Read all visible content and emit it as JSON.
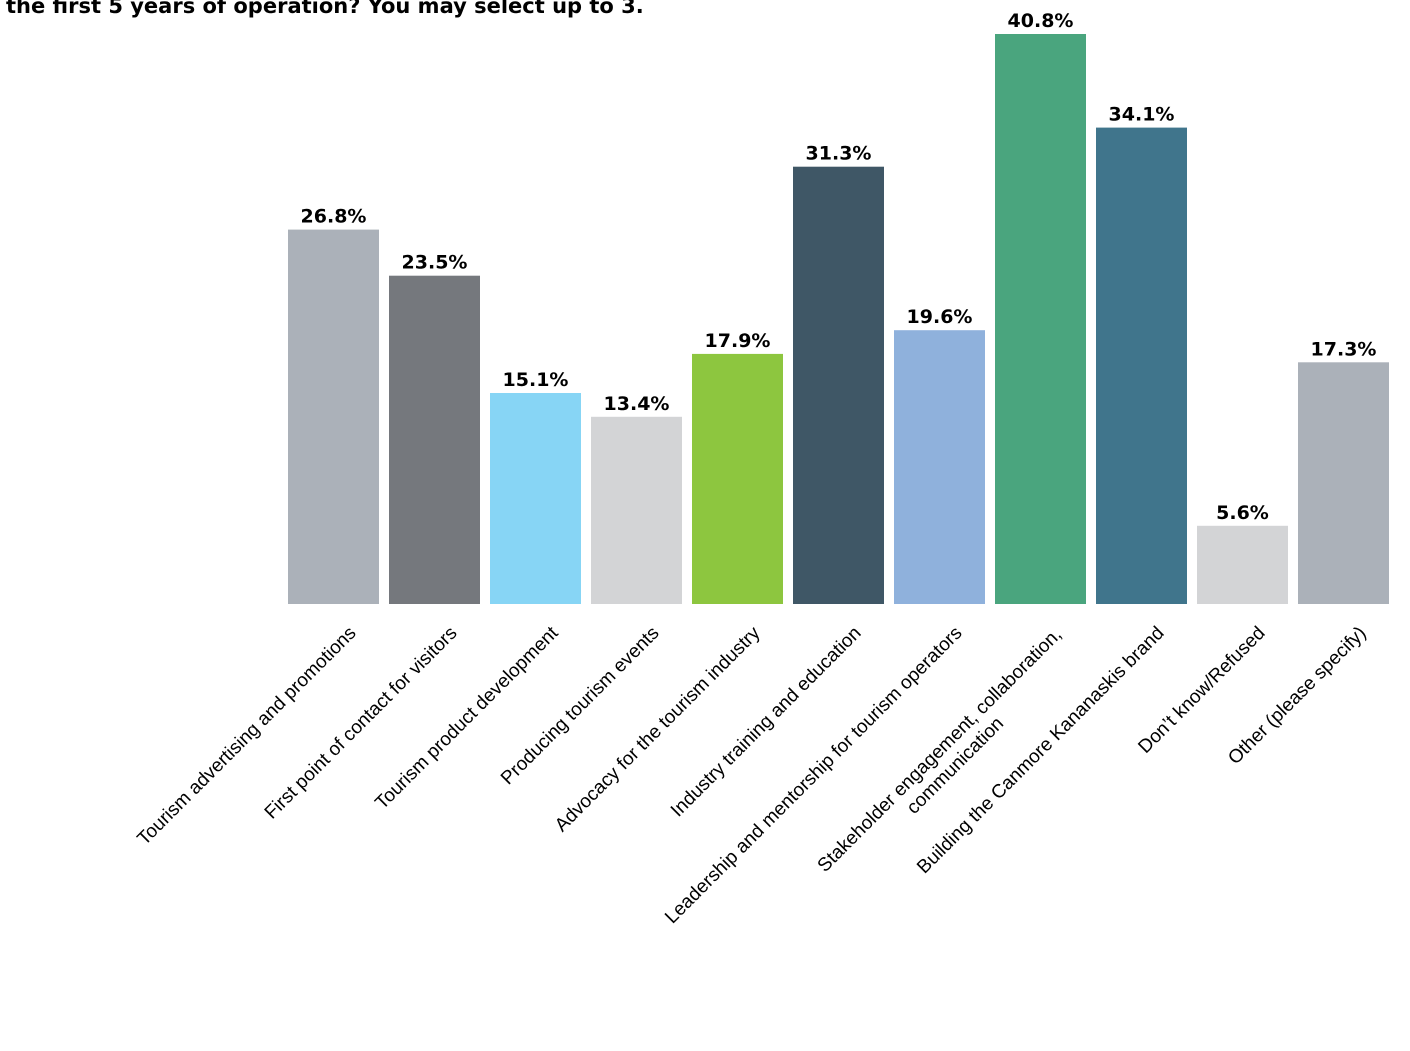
{
  "chart_data": {
    "type": "bar",
    "title": "the first 5 years of operation? You may select up to 3.",
    "categories": [
      "Tourism advertising and promotions",
      "First point of contact for visitors",
      "Tourism product development",
      "Producing tourism events",
      "Advocacy for the tourism industry",
      "Industry training and education",
      "Leadership and mentorship for tourism operators",
      "Stakeholder engagement, collaboration,|communication",
      "Building the Canmore Kananaskis brand",
      "Don’t know/Refused",
      "Other (please specify)"
    ],
    "values": [
      26.8,
      23.5,
      15.1,
      13.4,
      17.9,
      31.3,
      19.6,
      40.8,
      34.1,
      5.6,
      17.3
    ],
    "value_labels": [
      "26.8%",
      "23.5%",
      "15.1%",
      "13.4%",
      "17.9%",
      "31.3%",
      "19.6%",
      "40.8%",
      "34.1%",
      "5.6%",
      "17.3%"
    ],
    "colors": [
      "#abb1b9",
      "#75787d",
      "#87d5f5",
      "#d3d4d6",
      "#8dc63f",
      "#3f5766",
      "#8fb1dc",
      "#4aa57e",
      "#40758c",
      "#d3d4d6",
      "#abb1b9"
    ],
    "xlabel": "",
    "ylabel": "",
    "ylim": [
      0,
      40.8
    ],
    "grid": false,
    "legend": "none"
  }
}
